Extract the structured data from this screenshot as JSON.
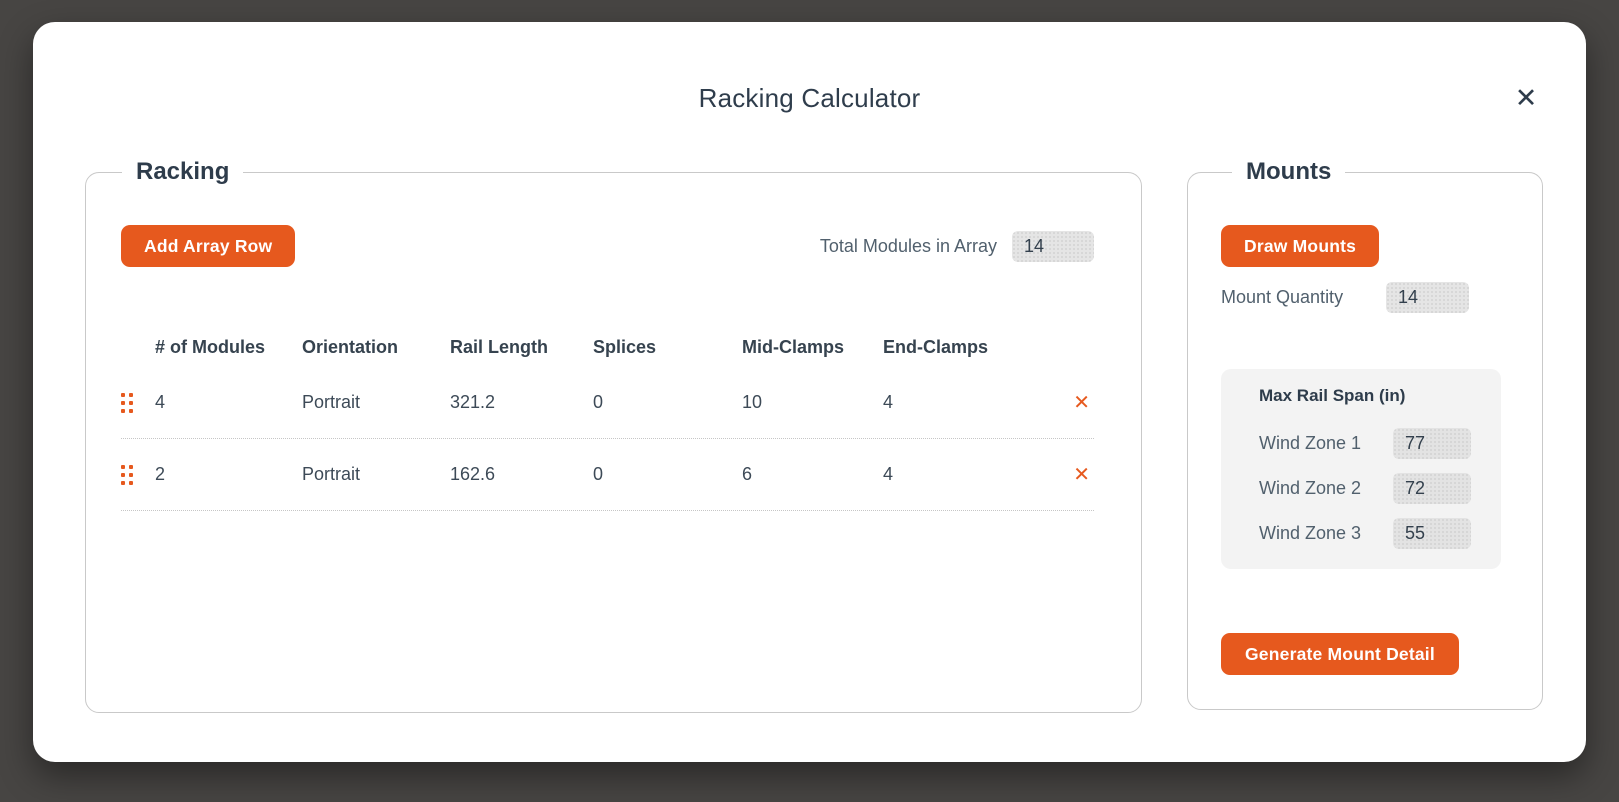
{
  "dialog": {
    "title": "Racking Calculator"
  },
  "icons": {
    "close_glyph": "✕",
    "delete_glyph": "✕"
  },
  "racking": {
    "legend": "Racking",
    "add_row_button": "Add Array Row",
    "total_modules_label": "Total Modules in Array",
    "total_modules_value": "14",
    "table": {
      "headers": [
        "# of Modules",
        "Orientation",
        "Rail Length",
        "Splices",
        "Mid-Clamps",
        "End-Clamps"
      ],
      "rows": [
        {
          "modules": "4",
          "orientation": "Portrait",
          "rail_length": "321.2",
          "splices": "0",
          "mid_clamps": "10",
          "end_clamps": "4"
        },
        {
          "modules": "2",
          "orientation": "Portrait",
          "rail_length": "162.6",
          "splices": "0",
          "mid_clamps": "6",
          "end_clamps": "4"
        }
      ]
    }
  },
  "mounts": {
    "legend": "Mounts",
    "draw_button": "Draw Mounts",
    "quantity_label": "Mount Quantity",
    "quantity_value": "14",
    "rail_span": {
      "title": "Max Rail Span (in)",
      "rows": [
        {
          "label": "Wind Zone 1",
          "value": "77"
        },
        {
          "label": "Wind Zone 2",
          "value": "72"
        },
        {
          "label": "Wind Zone 3",
          "value": "55"
        }
      ]
    },
    "generate_button": "Generate Mount Detail"
  },
  "colors": {
    "accent_orange": "#E6591E",
    "text_dark": "#2E3C4B",
    "text_muted": "#51606D",
    "input_bg": "#E5E5E5",
    "panel_bg": "#F3F3F3",
    "backdrop": "#474543",
    "border": "#C9C9C9"
  }
}
